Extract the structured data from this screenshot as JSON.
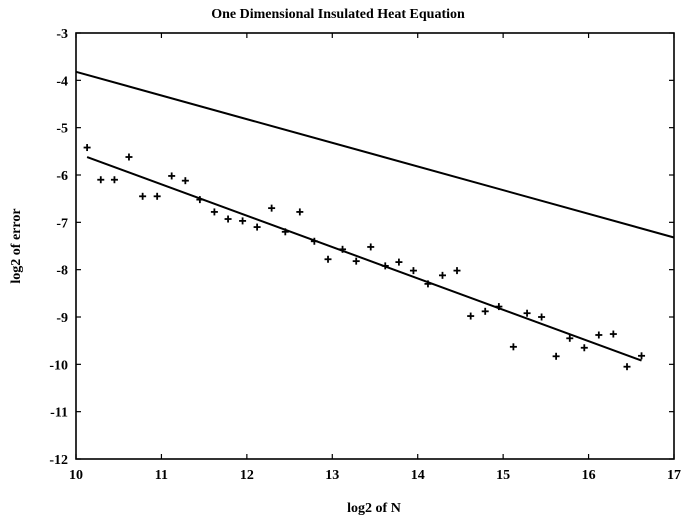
{
  "chart_data": {
    "type": "scatter",
    "title": "One Dimensional Insulated Heat Equation",
    "xlabel": "log2 of N",
    "ylabel": "log2 of error",
    "xlim": [
      10,
      17
    ],
    "ylim": [
      -12,
      -3
    ],
    "xticks": [
      10,
      11,
      12,
      13,
      14,
      15,
      16,
      17
    ],
    "yticks": [
      -3,
      -4,
      -5,
      -6,
      -7,
      -8,
      -9,
      -10,
      -11,
      -12
    ],
    "grid": false,
    "series": [
      {
        "style": "markers",
        "marker": "+",
        "x": [
          10.13,
          10.29,
          10.45,
          10.62,
          10.78,
          10.95,
          11.12,
          11.28,
          11.45,
          11.62,
          11.78,
          11.95,
          12.12,
          12.29,
          12.45,
          12.62,
          12.79,
          12.95,
          13.12,
          13.28,
          13.45,
          13.62,
          13.78,
          13.95,
          14.12,
          14.29,
          14.46,
          14.62,
          14.79,
          14.95,
          15.12,
          15.28,
          15.45,
          15.62,
          15.78,
          15.95,
          16.12,
          16.29,
          16.45,
          16.62
        ],
        "y": [
          -5.42,
          -6.1,
          -6.1,
          -5.62,
          -6.45,
          -6.45,
          -6.02,
          -6.12,
          -6.52,
          -6.78,
          -6.93,
          -6.97,
          -7.1,
          -6.7,
          -7.2,
          -6.78,
          -7.4,
          -7.78,
          -7.57,
          -7.82,
          -7.52,
          -7.92,
          -7.84,
          -8.02,
          -8.3,
          -8.12,
          -8.02,
          -8.98,
          -8.88,
          -8.78,
          -9.63,
          -8.92,
          -9.0,
          -9.83,
          -9.45,
          -9.65,
          -9.38,
          -9.36,
          -10.05,
          -9.82
        ]
      },
      {
        "style": "line",
        "x": [
          10.13,
          16.62
        ],
        "y": [
          -5.62,
          -9.92
        ]
      },
      {
        "style": "line",
        "x": [
          10,
          17
        ],
        "y": [
          -3.82,
          -7.32
        ]
      }
    ]
  }
}
